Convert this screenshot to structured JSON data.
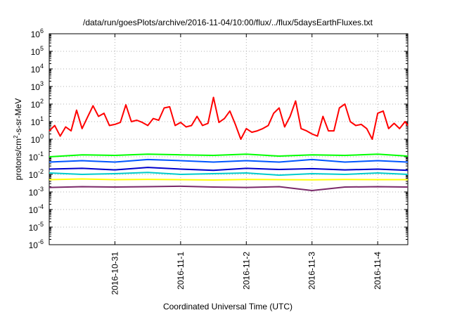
{
  "chart_data": {
    "type": "line",
    "title": "/data/run/goesPlots/archive/2016-11-04/10:00/flux/../flux/5daysEarthFluxes.txt",
    "xlabel": "Coordinated Universal Time (UTC)",
    "ylabel_pre": "protons/cm",
    "ylabel_sup": "2",
    "ylabel_post": "-s-sr-MeV",
    "yscale": "log",
    "ylim": [
      1e-06,
      1000000
    ],
    "xlim": [
      "2016-10-30T00:00",
      "2016-11-04T11:00"
    ],
    "grid": true,
    "x_ticks": [
      {
        "x": "2016-10-31T00:00",
        "label": "2016-10-31"
      },
      {
        "x": "2016-11-01T00:00",
        "label": "2016-11-1"
      },
      {
        "x": "2016-11-02T00:00",
        "label": "2016-11-2"
      },
      {
        "x": "2016-11-03T00:00",
        "label": "2016-11-3"
      },
      {
        "x": "2016-11-04T00:00",
        "label": "2016-11-4"
      }
    ],
    "y_ticks": [
      {
        "value": 1e-06,
        "base": "10",
        "exp": "-6"
      },
      {
        "value": 1e-05,
        "base": "10",
        "exp": "-5"
      },
      {
        "value": 0.0001,
        "base": "10",
        "exp": "-4"
      },
      {
        "value": 0.001,
        "base": "10",
        "exp": "-3"
      },
      {
        "value": 0.01,
        "base": "10",
        "exp": "-2"
      },
      {
        "value": 0.1,
        "base": "10",
        "exp": "-1"
      },
      {
        "value": 1,
        "base": "10",
        "exp": "0"
      },
      {
        "value": 10,
        "base": "10",
        "exp": "1"
      },
      {
        "value": 100,
        "base": "10",
        "exp": "2"
      },
      {
        "value": 1000,
        "base": "10",
        "exp": "3"
      },
      {
        "value": 10000,
        "base": "10",
        "exp": "4"
      },
      {
        "value": 100000,
        "base": "10",
        "exp": "5"
      },
      {
        "value": 1000000,
        "base": "10",
        "exp": "6"
      }
    ],
    "series": [
      {
        "color": "#ff0000",
        "x": [
          "2016-10-30T00:00",
          "2016-10-30T02:00",
          "2016-10-30T04:00",
          "2016-10-30T06:00",
          "2016-10-30T08:00",
          "2016-10-30T10:00",
          "2016-10-30T12:00",
          "2016-10-30T14:00",
          "2016-10-30T16:00",
          "2016-10-30T18:00",
          "2016-10-30T20:00",
          "2016-10-30T22:00",
          "2016-10-31T00:00",
          "2016-10-31T02:00",
          "2016-10-31T04:00",
          "2016-10-31T06:00",
          "2016-10-31T08:00",
          "2016-10-31T10:00",
          "2016-10-31T12:00",
          "2016-10-31T14:00",
          "2016-10-31T16:00",
          "2016-10-31T18:00",
          "2016-10-31T20:00",
          "2016-10-31T22:00",
          "2016-11-01T00:00",
          "2016-11-01T02:00",
          "2016-11-01T04:00",
          "2016-11-01T06:00",
          "2016-11-01T08:00",
          "2016-11-01T10:00",
          "2016-11-01T12:00",
          "2016-11-01T14:00",
          "2016-11-01T16:00",
          "2016-11-01T18:00",
          "2016-11-01T20:00",
          "2016-11-01T22:00",
          "2016-11-02T00:00",
          "2016-11-02T02:00",
          "2016-11-02T04:00",
          "2016-11-02T06:00",
          "2016-11-02T08:00",
          "2016-11-02T10:00",
          "2016-11-02T12:00",
          "2016-11-02T14:00",
          "2016-11-02T16:00",
          "2016-11-02T18:00",
          "2016-11-02T20:00",
          "2016-11-02T22:00",
          "2016-11-03T00:00",
          "2016-11-03T02:00",
          "2016-11-03T04:00",
          "2016-11-03T06:00",
          "2016-11-03T08:00",
          "2016-11-03T10:00",
          "2016-11-03T12:00",
          "2016-11-03T14:00",
          "2016-11-03T16:00",
          "2016-11-03T18:00",
          "2016-11-03T20:00",
          "2016-11-03T22:00",
          "2016-11-04T00:00",
          "2016-11-04T02:00",
          "2016-11-04T04:00",
          "2016-11-04T06:00",
          "2016-11-04T08:00",
          "2016-11-04T10:00",
          "2016-11-04T11:00"
        ],
        "values": [
          3,
          6,
          1.5,
          5,
          3,
          45,
          4,
          18,
          80,
          20,
          30,
          6,
          7,
          9,
          90,
          10,
          12,
          9,
          6,
          15,
          12,
          60,
          70,
          6,
          9,
          5,
          6,
          20,
          6,
          8,
          240,
          9,
          15,
          40,
          7,
          1,
          4,
          2.5,
          3,
          4,
          6,
          30,
          60,
          5,
          20,
          150,
          4,
          3,
          2,
          1.5,
          20,
          3,
          3,
          60,
          100,
          10,
          6,
          7,
          4,
          1,
          30,
          40,
          4,
          8,
          4,
          10,
          6
        ]
      },
      {
        "color": "#00ff00",
        "x": [
          "2016-10-30T00:00",
          "2016-10-30T12:00",
          "2016-10-31T00:00",
          "2016-10-31T12:00",
          "2016-11-01T00:00",
          "2016-11-01T12:00",
          "2016-11-02T00:00",
          "2016-11-02T12:00",
          "2016-11-03T00:00",
          "2016-11-03T12:00",
          "2016-11-04T00:00",
          "2016-11-04T11:00"
        ],
        "values": [
          0.1,
          0.13,
          0.12,
          0.14,
          0.13,
          0.12,
          0.14,
          0.11,
          0.13,
          0.12,
          0.14,
          0.11
        ]
      },
      {
        "color": "#0055ff",
        "x": [
          "2016-10-30T00:00",
          "2016-10-30T12:00",
          "2016-10-31T00:00",
          "2016-10-31T12:00",
          "2016-11-01T00:00",
          "2016-11-01T12:00",
          "2016-11-02T00:00",
          "2016-11-02T12:00",
          "2016-11-03T00:00",
          "2016-11-03T12:00",
          "2016-11-04T00:00",
          "2016-11-04T11:00"
        ],
        "values": [
          0.05,
          0.06,
          0.05,
          0.07,
          0.06,
          0.05,
          0.06,
          0.05,
          0.07,
          0.05,
          0.06,
          0.05
        ]
      },
      {
        "color": "#0000cc",
        "x": [
          "2016-10-30T00:00",
          "2016-10-30T12:00",
          "2016-10-31T00:00",
          "2016-10-31T12:00",
          "2016-11-01T00:00",
          "2016-11-01T12:00",
          "2016-11-02T00:00",
          "2016-11-02T12:00",
          "2016-11-03T00:00",
          "2016-11-03T12:00",
          "2016-11-04T00:00",
          "2016-11-04T11:00"
        ],
        "values": [
          0.02,
          0.022,
          0.018,
          0.025,
          0.02,
          0.017,
          0.022,
          0.019,
          0.021,
          0.018,
          0.02,
          0.017
        ]
      },
      {
        "color": "#00cccc",
        "x": [
          "2016-10-30T00:00",
          "2016-10-30T12:00",
          "2016-10-31T00:00",
          "2016-10-31T12:00",
          "2016-11-01T00:00",
          "2016-11-01T12:00",
          "2016-11-02T00:00",
          "2016-11-02T12:00",
          "2016-11-03T00:00",
          "2016-11-03T12:00",
          "2016-11-04T00:00",
          "2016-11-04T11:00"
        ],
        "values": [
          0.012,
          0.01,
          0.011,
          0.013,
          0.01,
          0.011,
          0.012,
          0.009,
          0.011,
          0.01,
          0.012,
          0.01
        ]
      },
      {
        "color": "#ffff00",
        "x": [
          "2016-10-30T00:00",
          "2016-10-30T12:00",
          "2016-10-31T00:00",
          "2016-10-31T12:00",
          "2016-11-01T00:00",
          "2016-11-01T12:00",
          "2016-11-02T00:00",
          "2016-11-02T12:00",
          "2016-11-03T00:00",
          "2016-11-03T12:00",
          "2016-11-04T00:00",
          "2016-11-04T11:00"
        ],
        "values": [
          0.005,
          0.0055,
          0.005,
          0.0052,
          0.005,
          0.0048,
          0.0051,
          0.005,
          0.0049,
          0.0051,
          0.005,
          0.005
        ]
      },
      {
        "color": "#7a2a6a",
        "x": [
          "2016-10-30T00:00",
          "2016-10-30T12:00",
          "2016-10-31T00:00",
          "2016-10-31T12:00",
          "2016-11-01T00:00",
          "2016-11-01T12:00",
          "2016-11-02T00:00",
          "2016-11-02T12:00",
          "2016-11-03T00:00",
          "2016-11-03T12:00",
          "2016-11-04T00:00",
          "2016-11-04T11:00"
        ],
        "values": [
          0.0018,
          0.002,
          0.0019,
          0.002,
          0.0021,
          0.0019,
          0.0018,
          0.002,
          0.0012,
          0.0019,
          0.002,
          0.0019
        ]
      }
    ]
  }
}
